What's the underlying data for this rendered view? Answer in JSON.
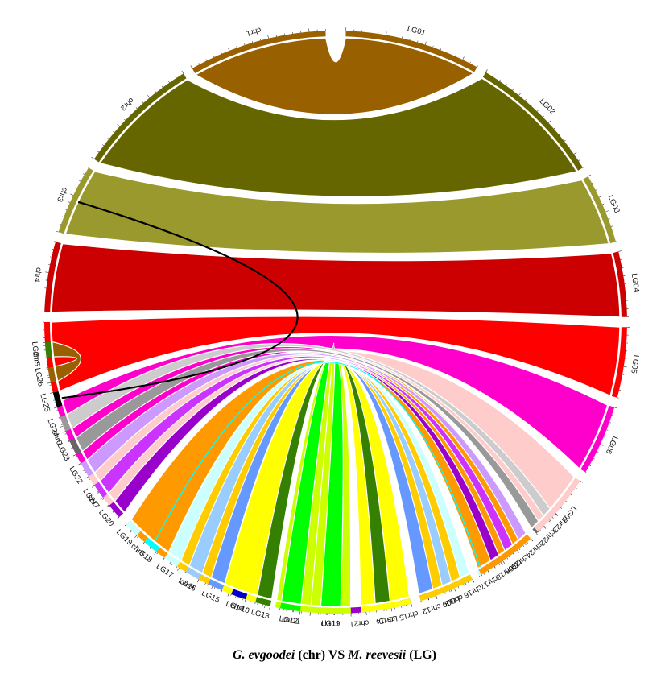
{
  "left_chromosomes": [
    {
      "name": "chr1",
      "color": "#996000"
    },
    {
      "name": "chr2",
      "color": "#666600"
    },
    {
      "name": "chr3",
      "color": "#99992e"
    },
    {
      "name": "chr4",
      "color": "#cc0000"
    },
    {
      "name": "chr5",
      "color": "#ff0000"
    },
    {
      "name": "chr6",
      "color": "#ff00cc"
    },
    {
      "name": "chr7",
      "color": "#ffcccc"
    },
    {
      "name": "chr8",
      "color": "#ff9900"
    },
    {
      "name": "chr9",
      "color": "#ffcc00"
    },
    {
      "name": "chr10",
      "color": "#ffff00"
    },
    {
      "name": "chr11",
      "color": "#ccff00"
    },
    {
      "name": "chr19",
      "color": "#00ff00"
    },
    {
      "name": "chr21",
      "color": "#9900cc"
    },
    {
      "name": "chr14",
      "color": "#358000"
    },
    {
      "name": "chr15",
      "color": "#0000cc"
    },
    {
      "name": "chr12",
      "color": "#6699ff"
    },
    {
      "name": "chr13",
      "color": "#99ccff"
    },
    {
      "name": "chr16",
      "color": "#00ffff"
    },
    {
      "name": "chr17",
      "color": "#ccffff"
    },
    {
      "name": "chr18",
      "color": "#9900cc"
    },
    {
      "name": "chr20",
      "color": "#cc33ff"
    },
    {
      "name": "chr24",
      "color": "#cc99ff"
    },
    {
      "name": "chr22",
      "color": "#666666"
    },
    {
      "name": "chr23",
      "color": "#999999"
    }
  ],
  "right_chromosomes": [
    {
      "name": "LG01",
      "color": "#996000"
    },
    {
      "name": "LG02",
      "color": "#666600"
    },
    {
      "name": "LG03",
      "color": "#99992e"
    },
    {
      "name": "LG04",
      "color": "#cc0000"
    },
    {
      "name": "LG05",
      "color": "#ff0000"
    },
    {
      "name": "LG06",
      "color": "#ff00cc"
    },
    {
      "name": "LG07",
      "color": "#ffcccc"
    },
    {
      "name": "LG08",
      "color": "#ff9900"
    },
    {
      "name": "LG09",
      "color": "#ffcc00"
    },
    {
      "name": "LG10",
      "color": "#ffff00"
    },
    {
      "name": "LG11",
      "color": "#ccff00"
    },
    {
      "name": "LG12",
      "color": "#00ff00"
    },
    {
      "name": "LG13",
      "color": "#358000"
    },
    {
      "name": "LG14",
      "color": "#0000cc"
    },
    {
      "name": "LG15",
      "color": "#6699ff"
    },
    {
      "name": "LG16",
      "color": "#99ccff"
    },
    {
      "name": "LG17",
      "color": "#ccffff"
    },
    {
      "name": "LG18",
      "color": "#00ffff"
    },
    {
      "name": "LG19",
      "color": "#ccffff"
    },
    {
      "name": "LG20",
      "color": "#9900cc"
    },
    {
      "name": "LG21",
      "color": "#cc33ff"
    },
    {
      "name": "LG22",
      "color": "#cc99ff"
    },
    {
      "name": "LG23",
      "color": "#666666"
    },
    {
      "name": "LG24",
      "color": "#999999"
    },
    {
      "name": "LG25",
      "color": "#000000"
    },
    {
      "name": "LG26",
      "color": "#996000"
    },
    {
      "name": "LG27",
      "color": "#358000"
    }
  ],
  "links": [
    {
      "from": "chr1",
      "to": "LG01",
      "color": "#996000",
      "kind": "ribbon"
    },
    {
      "from": "chr2",
      "to": "LG02",
      "color": "#666600",
      "kind": "ribbon"
    },
    {
      "from": "chr3",
      "to": "LG03",
      "color": "#99992e",
      "kind": "ribbon"
    },
    {
      "from": "chr4",
      "to": "LG04",
      "color": "#cc0000",
      "kind": "ribbon"
    },
    {
      "from": "chr5",
      "to": "LG05",
      "color": "#ff0000",
      "kind": "ribbon"
    },
    {
      "from": "chr6",
      "to": "LG06",
      "color": "#ff00cc",
      "kind": "ribbon"
    },
    {
      "from": "chr7",
      "to": "LG07",
      "color": "#ffcccc",
      "kind": "ribbon"
    },
    {
      "from": "chr8",
      "to": "LG08",
      "color": "#ff9900",
      "kind": "ribbon"
    },
    {
      "from": "chr9",
      "to": "LG09",
      "color": "#ffcc00",
      "kind": "ribbon"
    },
    {
      "from": "chr10",
      "to": "LG10",
      "color": "#ffff00",
      "kind": "ribbon"
    },
    {
      "from": "chr11",
      "to": "LG11",
      "color": "#ccff00",
      "kind": "ribbon"
    },
    {
      "from": "chr19",
      "to": "LG12",
      "color": "#00ff00",
      "kind": "ribbon"
    },
    {
      "from": "chr14",
      "to": "LG13",
      "color": "#358000",
      "kind": "ribbon"
    },
    {
      "from": "chr12",
      "to": "LG15",
      "color": "#6699ff",
      "kind": "ribbon"
    },
    {
      "from": "chr13",
      "to": "LG16",
      "color": "#99ccff",
      "kind": "ribbon"
    },
    {
      "from": "chr16",
      "to": "LG17",
      "color": "#ccffff",
      "kind": "ribbon"
    },
    {
      "from": "chr17",
      "to": "LG18",
      "color": "#00ffff",
      "kind": "thin"
    },
    {
      "from": "chr18",
      "to": "LG20",
      "color": "#9900cc",
      "kind": "ribbon"
    },
    {
      "from": "chr20",
      "to": "LG21",
      "color": "#cc33ff",
      "kind": "ribbon"
    },
    {
      "from": "chr24",
      "to": "LG22",
      "color": "#cc99ff",
      "kind": "ribbon"
    },
    {
      "from": "chr22",
      "to": "LG23",
      "color": "#999999",
      "kind": "ribbon"
    },
    {
      "from": "chr23",
      "to": "LG24",
      "color": "#cccccc",
      "kind": "ribbon"
    },
    {
      "from": "LG27",
      "to": "LG26",
      "color": "#996000",
      "kind": "ribbon"
    },
    {
      "from": "chr3",
      "to": "LG25",
      "color": "#000000",
      "kind": "thin"
    }
  ],
  "caption": {
    "sp1": "G. evgoodei",
    "tag1": " (chr) VS ",
    "sp2": "M. reevesii",
    "tag2": " (LG)"
  }
}
